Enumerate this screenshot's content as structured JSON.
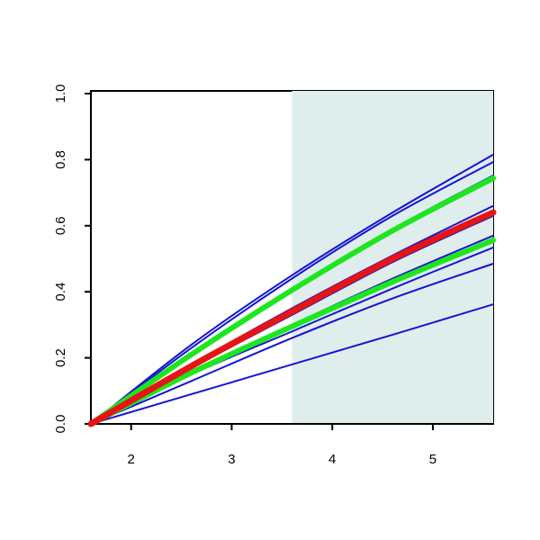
{
  "chart_data": {
    "type": "line",
    "x": [
      1.6,
      2.6,
      3.6,
      4.6,
      5.6
    ],
    "xlim": [
      1.6,
      5.6
    ],
    "xticks": [
      2,
      3,
      4,
      5
    ],
    "ylim": [
      0,
      1
    ],
    "yticks": [
      {
        "value": 0,
        "label": "0.0"
      },
      {
        "value": 0.2,
        "label": "0.2"
      },
      {
        "value": 0.4,
        "label": "0.4"
      },
      {
        "value": 0.6,
        "label": "0.6"
      },
      {
        "value": 0.8,
        "label": "0.8"
      },
      {
        "value": 1,
        "label": "1.0"
      }
    ],
    "shade": {
      "xlim": [
        3.6,
        5.6
      ],
      "color": "#e0eded"
    },
    "series": [
      {
        "color": "#1414d2",
        "width": 2,
        "values": [
          0,
          0.24,
          0.45,
          0.64,
          0.815
        ]
      },
      {
        "color": "#1414d2",
        "width": 2,
        "values": [
          0,
          0.23,
          0.44,
          0.63,
          0.793
        ]
      },
      {
        "color": "#1414d2",
        "width": 2,
        "values": [
          0,
          0.21,
          0.41,
          0.59,
          0.752
        ]
      },
      {
        "color": "#1414d2",
        "width": 2,
        "values": [
          0,
          0.21,
          0.4,
          0.58,
          0.738
        ]
      },
      {
        "color": "#1414d2",
        "width": 2,
        "values": [
          0,
          0.18,
          0.35,
          0.51,
          0.66
        ]
      },
      {
        "color": "#1414d2",
        "width": 2,
        "values": [
          0,
          0.17,
          0.33,
          0.49,
          0.63
        ]
      },
      {
        "color": "#1414d2",
        "width": 2,
        "values": [
          0,
          0.16,
          0.3,
          0.44,
          0.57
        ]
      },
      {
        "color": "#1414d2",
        "width": 2,
        "values": [
          0,
          0.15,
          0.28,
          0.41,
          0.534
        ]
      },
      {
        "color": "#1414d2",
        "width": 2,
        "values": [
          0,
          0.13,
          0.26,
          0.38,
          0.485
        ]
      },
      {
        "color": "#1414d2",
        "width": 2,
        "values": [
          0,
          0.09,
          0.18,
          0.27,
          0.362
        ]
      },
      {
        "color": "#1ee61e",
        "width": 6,
        "values": [
          0,
          0.21,
          0.405,
          0.585,
          0.744
        ]
      },
      {
        "color": "#1ee61e",
        "width": 6,
        "values": [
          0,
          0.155,
          0.295,
          0.43,
          0.556
        ]
      },
      {
        "color": "#e61414",
        "width": 7,
        "values": [
          0,
          0.175,
          0.34,
          0.5,
          0.64
        ]
      }
    ]
  }
}
